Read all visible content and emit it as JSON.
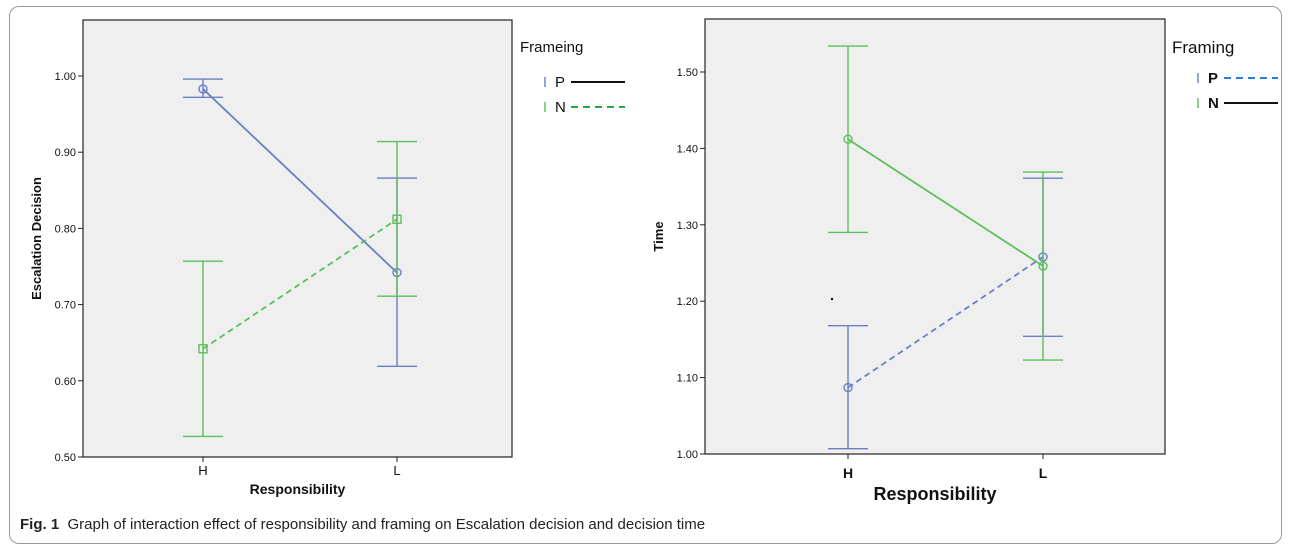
{
  "caption": {
    "label": "Fig. 1",
    "text": "Graph of interaction effect of responsibility and framing on Escalation decision and decision time"
  },
  "chart_data": [
    {
      "type": "line",
      "categories": [
        "H",
        "L"
      ],
      "xlabel": "Responsibility",
      "ylabel": "Escalation Decision",
      "ylim": [
        0.5,
        1.0
      ],
      "yticks": [
        "0.50",
        "0.60",
        "0.70",
        "0.80",
        "0.90",
        "1.00"
      ],
      "grid": false,
      "legend": {
        "title": "Frameing",
        "placement": "right"
      },
      "series": [
        {
          "name": "P",
          "color": "#6b7fc4",
          "line": "solid",
          "marker": "circle",
          "values": [
            0.983,
            0.742
          ],
          "err_low": [
            0.972,
            0.619
          ],
          "err_high": [
            0.996,
            0.866
          ]
        },
        {
          "name": "N",
          "color": "#5cbf5c",
          "line": "dashed",
          "marker": "square",
          "values": [
            0.642,
            0.812
          ],
          "err_low": [
            0.527,
            0.711
          ],
          "err_high": [
            0.757,
            0.914
          ]
        }
      ]
    },
    {
      "type": "line",
      "categories": [
        "H",
        "L"
      ],
      "xlabel": "Responsibility",
      "ylabel": "Time",
      "ylim": [
        1.0,
        1.55
      ],
      "yticks": [
        "1.00",
        "1.10",
        "1.20",
        "1.30",
        "1.40",
        "1.50"
      ],
      "grid": false,
      "legend": {
        "title": "Framing",
        "placement": "right"
      },
      "series": [
        {
          "name": "P",
          "color": "#6b7fc4",
          "line": "dashed",
          "marker": "circle",
          "values": [
            1.087,
            1.258
          ],
          "err_low": [
            1.007,
            1.154
          ],
          "err_high": [
            1.168,
            1.361
          ]
        },
        {
          "name": "N",
          "color": "#5cbf5c",
          "line": "solid",
          "marker": "circle",
          "values": [
            1.412,
            1.246
          ],
          "err_low": [
            1.29,
            1.123
          ],
          "err_high": [
            1.534,
            1.369
          ]
        }
      ]
    }
  ]
}
